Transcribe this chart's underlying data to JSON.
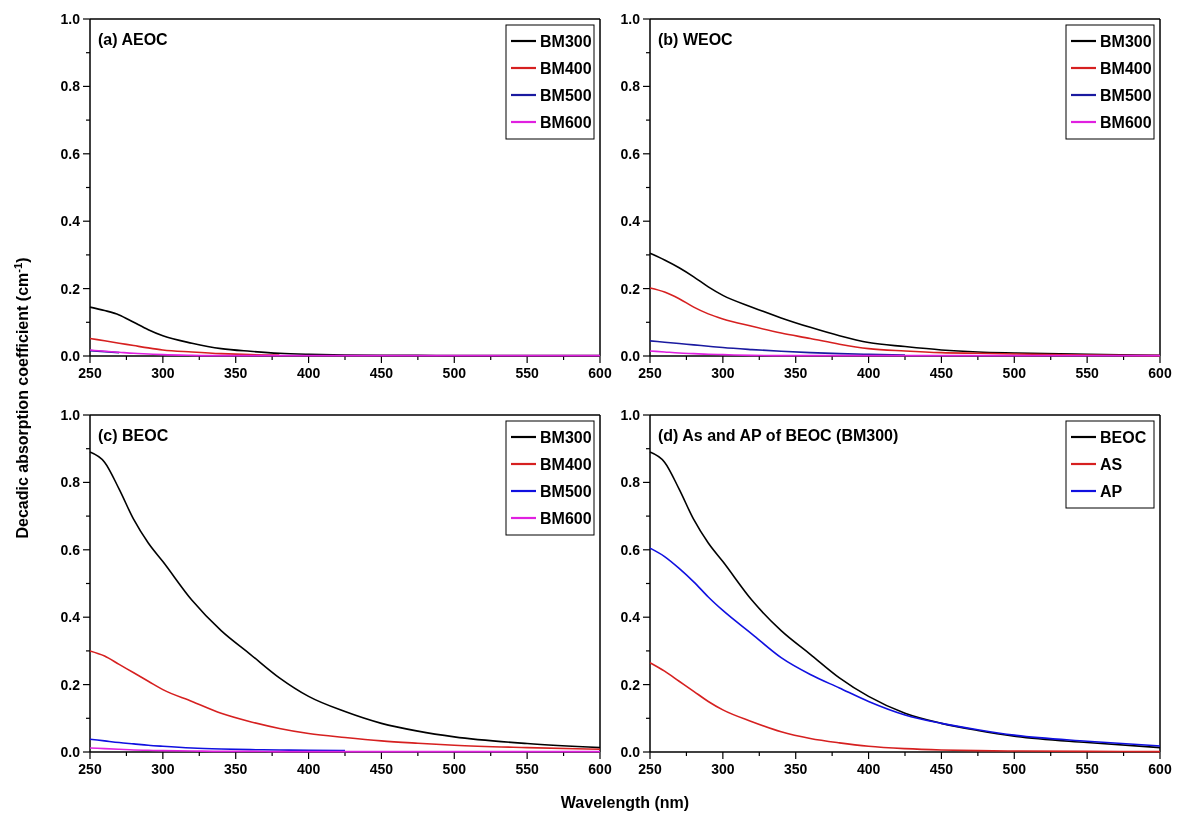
{
  "chart_data": [
    {
      "type": "line",
      "title": "(a) AEOC",
      "ylabel": "Decadic absorption coefficient (cm$^{-1}$)",
      "x": [
        250,
        260,
        270,
        280,
        290,
        300,
        320,
        340,
        360,
        380,
        400,
        425,
        450,
        475,
        500,
        550,
        600
      ],
      "xlim": [
        250,
        600
      ],
      "ylim": [
        0,
        1.0
      ],
      "xticks": [
        250,
        {
          "value": 275,
          "label": null
        },
        300,
        {
          "value": 325,
          "label": null
        },
        350,
        {
          "value": 375,
          "label": null
        },
        400,
        {
          "value": 425,
          "label": null
        },
        450,
        {
          "value": 475,
          "label": null
        },
        500,
        {
          "value": 525,
          "label": null
        },
        550,
        {
          "value": 575,
          "label": null
        },
        600
      ],
      "yticks": [
        {
          "value": 0,
          "label": "0.0"
        },
        {
          "value": 0.1,
          "label": null
        },
        0.2,
        {
          "value": 0.3,
          "label": null
        },
        0.4,
        {
          "value": 0.5,
          "label": null
        },
        0.6,
        {
          "value": 0.7,
          "label": null
        },
        0.8,
        {
          "value": 0.9,
          "label": null
        },
        {
          "value": 1.0,
          "label": "1.0"
        }
      ],
      "legend": "top right",
      "series": [
        {
          "name": "BM300",
          "color": "#000000",
          "values": [
            0.145,
            0.135,
            0.122,
            0.1,
            0.078,
            0.06,
            0.038,
            0.022,
            0.014,
            0.008,
            0.005,
            0.003,
            0.002,
            0.002,
            0.001,
            0.001,
            0.001
          ]
        },
        {
          "name": "BM400",
          "color": "#d62020",
          "values": [
            0.052,
            0.045,
            0.038,
            0.031,
            0.024,
            0.018,
            0.012,
            0.007,
            0.004,
            0.003,
            null,
            null,
            null,
            null,
            null,
            null,
            null
          ]
        },
        {
          "name": "BM500",
          "color": "#1a1aa0",
          "values": [
            0.016,
            0.013,
            0.01,
            null,
            null,
            null,
            null,
            null,
            null,
            null,
            null,
            null,
            null,
            null,
            null,
            null,
            null
          ]
        },
        {
          "name": "BM600",
          "color": "#e020e0",
          "values": [
            0.018,
            0.014,
            0.011,
            0.008,
            0.006,
            0.004,
            0.002,
            0.001,
            0.001,
            0.001,
            0.001,
            0.001,
            0.001,
            0.001,
            0.001,
            0.001,
            0.001
          ]
        }
      ]
    },
    {
      "type": "line",
      "title": "(b) WEOC",
      "x": [
        250,
        260,
        270,
        280,
        290,
        300,
        320,
        340,
        360,
        380,
        400,
        425,
        450,
        475,
        500,
        550,
        600
      ],
      "xlim": [
        250,
        600
      ],
      "ylim": [
        0,
        1.0
      ],
      "xticks": [
        250,
        {
          "value": 275,
          "label": null
        },
        300,
        {
          "value": 325,
          "label": null
        },
        350,
        {
          "value": 375,
          "label": null
        },
        400,
        {
          "value": 425,
          "label": null
        },
        450,
        {
          "value": 475,
          "label": null
        },
        500,
        {
          "value": 525,
          "label": null
        },
        550,
        {
          "value": 575,
          "label": null
        },
        600
      ],
      "yticks": [
        {
          "value": 0,
          "label": "0.0"
        },
        {
          "value": 0.1,
          "label": null
        },
        0.2,
        {
          "value": 0.3,
          "label": null
        },
        0.4,
        {
          "value": 0.5,
          "label": null
        },
        0.6,
        {
          "value": 0.7,
          "label": null
        },
        0.8,
        {
          "value": 0.9,
          "label": null
        },
        {
          "value": 1.0,
          "label": "1.0"
        }
      ],
      "legend": "top right",
      "series": [
        {
          "name": "BM300",
          "color": "#000000",
          "values": [
            0.305,
            0.285,
            0.262,
            0.235,
            0.205,
            0.18,
            0.145,
            0.113,
            0.085,
            0.06,
            0.04,
            0.028,
            0.018,
            0.012,
            0.009,
            0.005,
            0.002
          ]
        },
        {
          "name": "BM400",
          "color": "#d62020",
          "values": [
            0.202,
            0.19,
            0.17,
            0.145,
            0.125,
            0.11,
            0.088,
            0.068,
            0.052,
            0.035,
            0.022,
            0.015,
            0.01,
            0.008,
            0.006,
            0.003,
            0.001
          ]
        },
        {
          "name": "BM500",
          "color": "#1a1aa0",
          "values": [
            0.045,
            0.041,
            0.037,
            0.033,
            0.029,
            0.025,
            0.019,
            0.014,
            0.01,
            0.007,
            0.005,
            0.003,
            null,
            null,
            null,
            null,
            null
          ]
        },
        {
          "name": "BM600",
          "color": "#e020e0",
          "values": [
            0.015,
            0.012,
            0.009,
            0.007,
            0.005,
            0.004,
            0.002,
            0.001,
            0.001,
            0.001,
            0.001,
            0.001,
            0.001,
            0.001,
            0.001,
            0.001,
            0.001
          ]
        }
      ]
    },
    {
      "type": "line",
      "title": "(c) BEOC",
      "xlabel": "Wavelength (nm)",
      "x": [
        250,
        260,
        270,
        280,
        290,
        300,
        320,
        340,
        360,
        380,
        400,
        425,
        450,
        475,
        500,
        550,
        600
      ],
      "xlim": [
        250,
        600
      ],
      "ylim": [
        0,
        1.0
      ],
      "xticks": [
        250,
        {
          "value": 275,
          "label": null
        },
        300,
        {
          "value": 325,
          "label": null
        },
        350,
        {
          "value": 375,
          "label": null
        },
        400,
        {
          "value": 425,
          "label": null
        },
        450,
        {
          "value": 475,
          "label": null
        },
        500,
        {
          "value": 525,
          "label": null
        },
        550,
        {
          "value": 575,
          "label": null
        },
        600
      ],
      "yticks": [
        {
          "value": 0,
          "label": "0.0"
        },
        {
          "value": 0.1,
          "label": null
        },
        0.2,
        {
          "value": 0.3,
          "label": null
        },
        0.4,
        {
          "value": 0.5,
          "label": null
        },
        0.6,
        {
          "value": 0.7,
          "label": null
        },
        0.8,
        {
          "value": 0.9,
          "label": null
        },
        {
          "value": 1.0,
          "label": "1.0"
        }
      ],
      "legend": "top right",
      "series": [
        {
          "name": "BM300",
          "color": "#000000",
          "values": [
            0.89,
            0.86,
            0.78,
            0.69,
            0.62,
            0.565,
            0.45,
            0.36,
            0.29,
            0.22,
            0.165,
            0.12,
            0.085,
            0.062,
            0.045,
            0.025,
            0.013
          ]
        },
        {
          "name": "BM400",
          "color": "#d62020",
          "values": [
            0.3,
            0.285,
            0.26,
            0.235,
            0.21,
            0.185,
            0.15,
            0.115,
            0.09,
            0.07,
            0.055,
            0.043,
            0.033,
            0.026,
            0.02,
            0.013,
            0.008
          ]
        },
        {
          "name": "BM500",
          "color": "#1010e0",
          "values": [
            0.038,
            0.033,
            0.028,
            0.024,
            0.02,
            0.017,
            0.012,
            0.009,
            0.007,
            0.006,
            0.005,
            0.004,
            null,
            null,
            null,
            null,
            null
          ]
        },
        {
          "name": "BM600",
          "color": "#e020e0",
          "values": [
            0.012,
            0.01,
            0.008,
            0.006,
            0.005,
            0.004,
            0.003,
            0.002,
            0.002,
            0.001,
            0.001,
            0.001,
            0.001,
            0.001,
            0.001,
            0.001,
            0.001
          ]
        }
      ]
    },
    {
      "type": "line",
      "title": "(d) As and AP of BEOC (BM300)",
      "x": [
        250,
        260,
        270,
        280,
        290,
        300,
        320,
        340,
        360,
        380,
        400,
        425,
        450,
        475,
        500,
        550,
        600
      ],
      "xlim": [
        250,
        600
      ],
      "ylim": [
        0,
        1.0
      ],
      "xticks": [
        250,
        {
          "value": 275,
          "label": null
        },
        300,
        {
          "value": 325,
          "label": null
        },
        350,
        {
          "value": 375,
          "label": null
        },
        400,
        {
          "value": 425,
          "label": null
        },
        450,
        {
          "value": 475,
          "label": null
        },
        500,
        {
          "value": 525,
          "label": null
        },
        550,
        {
          "value": 575,
          "label": null
        },
        600
      ],
      "yticks": [
        {
          "value": 0,
          "label": "0.0"
        },
        {
          "value": 0.1,
          "label": null
        },
        0.2,
        {
          "value": 0.3,
          "label": null
        },
        0.4,
        {
          "value": 0.5,
          "label": null
        },
        0.6,
        {
          "value": 0.7,
          "label": null
        },
        0.8,
        {
          "value": 0.9,
          "label": null
        },
        {
          "value": 1.0,
          "label": "1.0"
        }
      ],
      "legend": "top right",
      "series": [
        {
          "name": "BEOC",
          "color": "#000000",
          "values": [
            0.89,
            0.86,
            0.78,
            0.69,
            0.62,
            0.565,
            0.45,
            0.36,
            0.29,
            0.22,
            0.165,
            0.115,
            0.085,
            0.064,
            0.047,
            0.028,
            0.013
          ]
        },
        {
          "name": "AS",
          "color": "#d62020",
          "values": [
            0.265,
            0.24,
            0.21,
            0.18,
            0.15,
            0.125,
            0.09,
            0.06,
            0.04,
            0.027,
            0.017,
            0.01,
            0.006,
            0.004,
            0.003,
            0.002,
            0.001
          ]
        },
        {
          "name": "AP",
          "color": "#1010e0",
          "values": [
            0.605,
            0.58,
            0.545,
            0.505,
            0.46,
            0.42,
            0.35,
            0.28,
            0.23,
            0.19,
            0.15,
            0.11,
            0.085,
            0.066,
            0.05,
            0.032,
            0.018
          ]
        }
      ]
    }
  ]
}
